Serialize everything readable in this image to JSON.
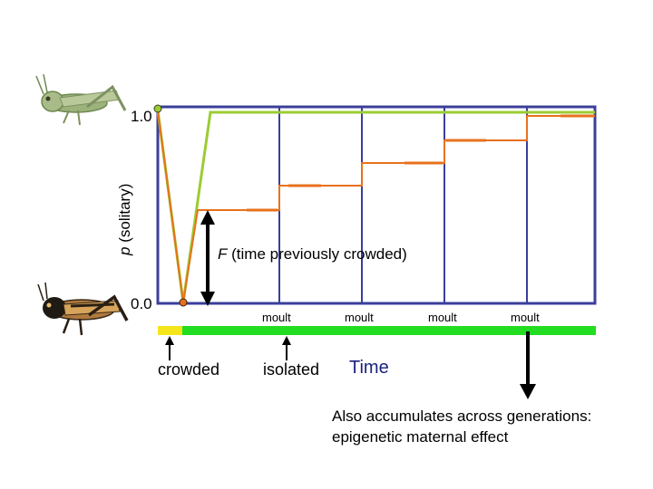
{
  "y_axis": {
    "label_italic": "p",
    "label_rest": "(solitary)",
    "tick_top": "1.0",
    "tick_bottom": "0.0"
  },
  "annotation_F": {
    "italic": "F",
    "rest": "(time previously crowded)"
  },
  "moult_labels": [
    "moult",
    "moult",
    "moult",
    "moult"
  ],
  "bar_labels": {
    "crowded": "crowded",
    "isolated": "isolated",
    "time": "Time"
  },
  "note": {
    "line1": "Also accumulates across generations:",
    "line2": "epigenetic maternal effect"
  },
  "images": {
    "top": "solitary-locust-icon",
    "bottom": "gregarious-locust-icon"
  },
  "colors": {
    "frame": "#3a3f9a",
    "green_line": "#9ccc33",
    "orange_line": "#e8711c",
    "crowded_bar": "#f5e51b",
    "isolated_bar": "#22dd22"
  }
}
